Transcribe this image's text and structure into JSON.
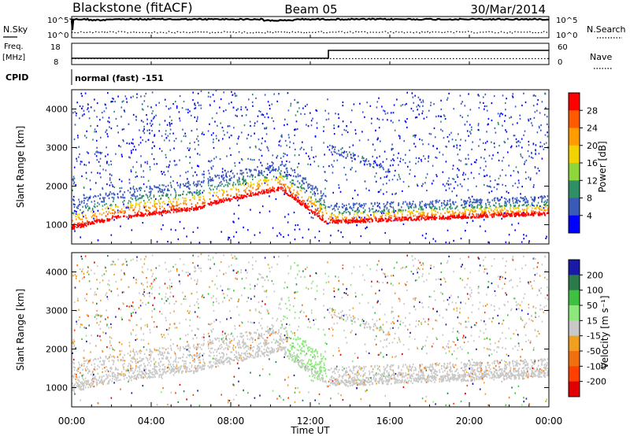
{
  "header": {
    "station": "Blackstone (fitACF)",
    "beam": "Beam 05",
    "date": "30/Mar/2014"
  },
  "top_panels": {
    "nsky_label": "N.Sky",
    "nsearch_label": "N.Search",
    "nsky_ticks": [
      "10^5",
      "10^0"
    ],
    "nsearch_ticks": [
      "10^5",
      "10^0"
    ],
    "freq_label_1": "Freq.",
    "freq_label_2": "[MHz]",
    "freq_ticks": [
      "18",
      "8"
    ],
    "nave_label": "Nave",
    "nave_ticks": [
      "60",
      "0"
    ],
    "cpid_label": "CPID",
    "cpid_value": "normal (fast) -151",
    "frequency_step_time": "13:00"
  },
  "chart_data": [
    {
      "type": "heatmap",
      "title": "Power",
      "ylabel": "Slant Range [km]",
      "xlabel": "",
      "ylim": [
        500,
        4500
      ],
      "y_ticks": [
        "1000",
        "2000",
        "3000",
        "4000"
      ],
      "x_ticks": [
        "00:00",
        "04:00",
        "08:00",
        "12:00",
        "16:00",
        "20:00",
        "00:00"
      ],
      "colorbar_label": "Power [dB]",
      "colorbar_ticks": [
        "28",
        "24",
        "20",
        "16",
        "12",
        "8",
        "4"
      ],
      "colorbar_colors": [
        "#ff0000",
        "#ff5a00",
        "#ff9c00",
        "#f2d200",
        "#8ed63b",
        "#2f8f67",
        "#3a5ab8",
        "#0000ff"
      ],
      "data_gap": "06:45"
    },
    {
      "type": "heatmap",
      "title": "Velocity",
      "ylabel": "Slant Range [km]",
      "xlabel": "Time UT",
      "ylim": [
        500,
        4500
      ],
      "y_ticks": [
        "1000",
        "2000",
        "3000",
        "4000"
      ],
      "x_ticks": [
        "00:00",
        "04:00",
        "08:00",
        "12:00",
        "16:00",
        "20:00",
        "00:00"
      ],
      "colorbar_label": "Velocity [m s⁻¹]",
      "colorbar_ticks": [
        "200",
        "100",
        "50",
        "15",
        "-15",
        "-50",
        "-100",
        "-200"
      ],
      "colorbar_colors": [
        "#1a1aa8",
        "#2a7a4a",
        "#40c040",
        "#8ce87a",
        "#c8c8c8",
        "#f0a020",
        "#f07010",
        "#ff4000",
        "#e00000"
      ],
      "data_gap": "06:45"
    }
  ]
}
